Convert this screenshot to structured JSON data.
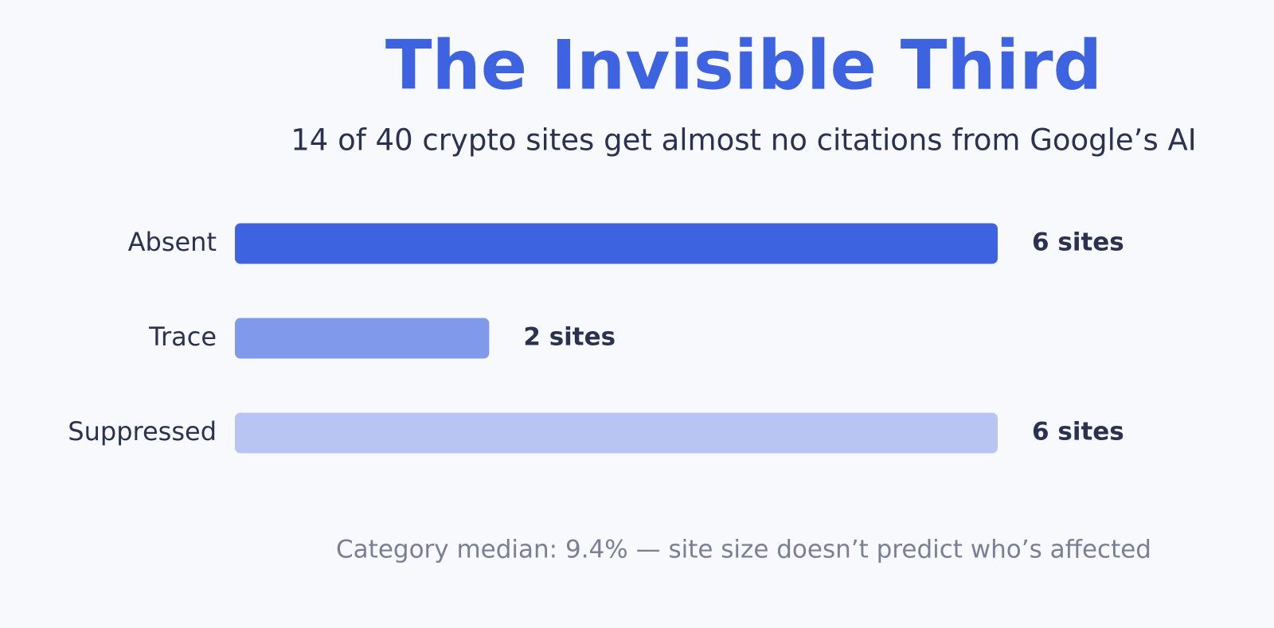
{
  "chart_data": {
    "type": "hbar",
    "title": "The Invisible Third",
    "subtitle": "14 of 40 crypto sites get almost no citations from Google’s AI",
    "categories": [
      "Absent",
      "Trace",
      "Suppressed"
    ],
    "values": [
      6,
      2,
      6
    ],
    "value_labels": [
      "6 sites",
      "2 sites",
      "6 sites"
    ],
    "colors": [
      "#3d63e0",
      "#8199eb",
      "#b8c5f3"
    ],
    "annotation": "Category median: 9.4% — site size doesn’t predict who’s affected"
  }
}
